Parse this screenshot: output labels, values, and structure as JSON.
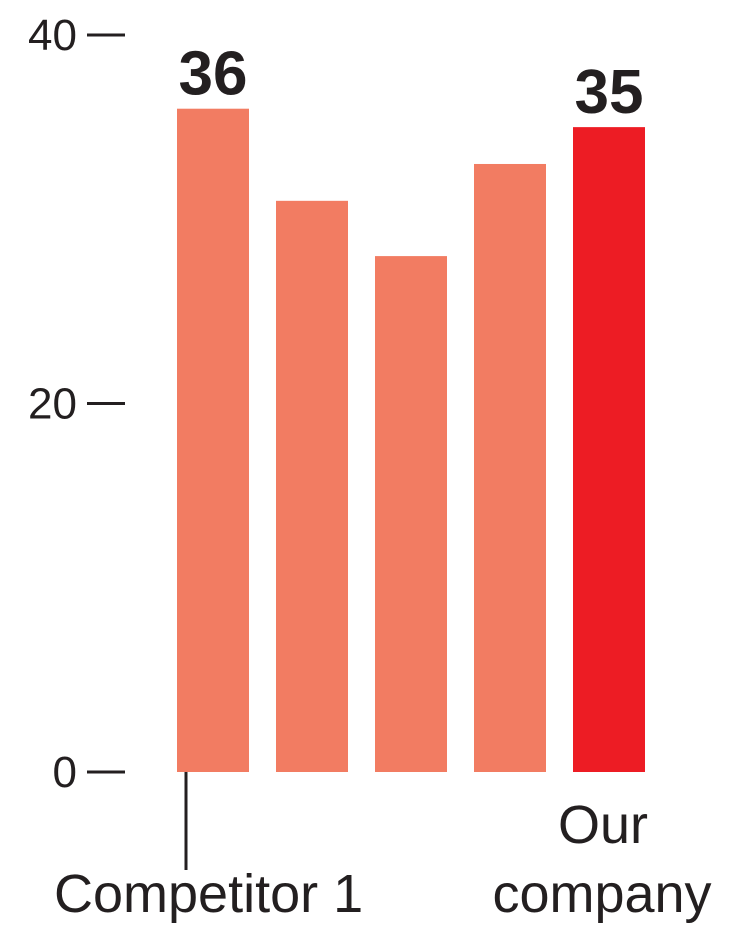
{
  "chart_data": {
    "type": "bar",
    "categories": [
      "Competitor 1",
      "",
      "",
      "",
      "Our company"
    ],
    "category_label_lines": [
      [
        "Competitor 1"
      ],
      [],
      [],
      [],
      [
        "Our",
        "company"
      ]
    ],
    "values": [
      36,
      31,
      28,
      33,
      35
    ],
    "data_labels": [
      "36",
      "",
      "",
      "",
      "35"
    ],
    "bar_colors": [
      "#f27c62",
      "#f27c62",
      "#f27c62",
      "#f27c62",
      "#ed1c24"
    ],
    "ylim": [
      0,
      40
    ],
    "yticks": [
      0,
      20,
      40
    ],
    "ytick_labels": [
      "0",
      "20",
      "40"
    ],
    "title": "",
    "xlabel": "",
    "ylabel": "",
    "grid": false,
    "text_color": "#231f20"
  }
}
